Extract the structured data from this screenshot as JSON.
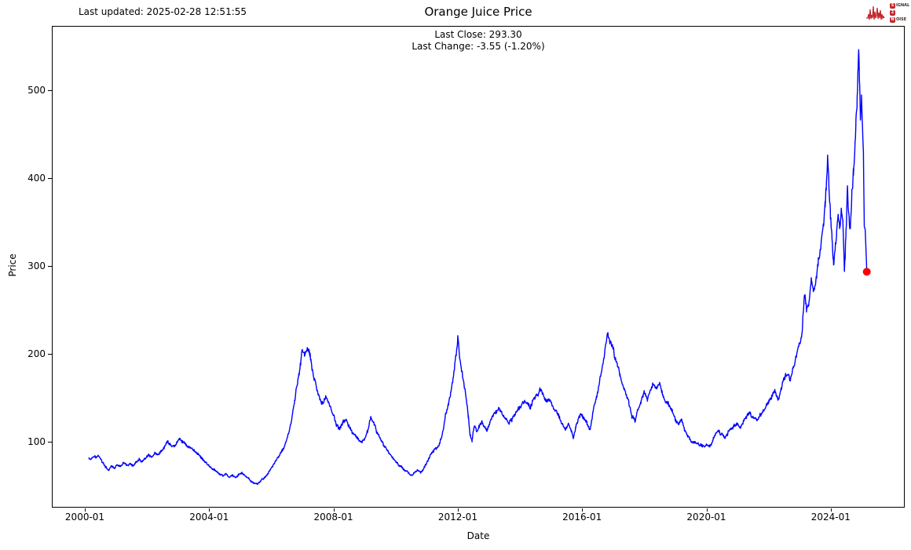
{
  "header": {
    "last_updated": "Last updated: 2025-02-28 12:51:55",
    "title": "Orange Juice Price",
    "subtitle_close": "Last Close: 293.30",
    "subtitle_change": "Last Change: -3.55 (-1.20%)",
    "logo": {
      "color": "#c1272d",
      "rows": [
        {
          "boxed": "S",
          "rest": "IGNAL"
        },
        {
          "boxed": "2",
          "rest": ""
        },
        {
          "boxed": "N",
          "rest": "OISE"
        }
      ]
    }
  },
  "chart_data": {
    "type": "line",
    "title": "Orange Juice Price",
    "xlabel": "Date",
    "ylabel": "Price",
    "line_color": "#0000ff",
    "marker_color": "#ff0000",
    "last_close": 293.3,
    "last_change": -3.55,
    "last_change_pct": -1.2,
    "last_updated": "2025-02-28 12:51:55",
    "xlim": [
      1998.94,
      2026.38
    ],
    "ylim": [
      25,
      573
    ],
    "x_ticks": [
      {
        "year": 2000,
        "label": "2000-01"
      },
      {
        "year": 2004,
        "label": "2004-01"
      },
      {
        "year": 2008,
        "label": "2008-01"
      },
      {
        "year": 2012,
        "label": "2012-01"
      },
      {
        "year": 2016,
        "label": "2016-01"
      },
      {
        "year": 2020,
        "label": "2020-01"
      },
      {
        "year": 2024,
        "label": "2024-01"
      }
    ],
    "y_ticks": [
      {
        "value": 100,
        "label": "100"
      },
      {
        "value": 200,
        "label": "200"
      },
      {
        "value": 300,
        "label": "300"
      },
      {
        "value": 400,
        "label": "400"
      },
      {
        "value": 500,
        "label": "500"
      }
    ],
    "noise_pct": 0.03,
    "noise_cutoff_year": 2025.0,
    "marker_point": [
      2025.16,
      293.3
    ],
    "series": [
      {
        "name": "Orange Juice Price",
        "points": [
          [
            2000.12,
            83
          ],
          [
            2000.2,
            80
          ],
          [
            2000.28,
            85
          ],
          [
            2000.36,
            82
          ],
          [
            2000.45,
            84
          ],
          [
            2000.55,
            78
          ],
          [
            2000.65,
            72
          ],
          [
            2000.75,
            67
          ],
          [
            2000.85,
            72
          ],
          [
            2000.95,
            70
          ],
          [
            2001.05,
            73
          ],
          [
            2001.15,
            71
          ],
          [
            2001.25,
            76
          ],
          [
            2001.35,
            73
          ],
          [
            2001.45,
            75
          ],
          [
            2001.55,
            72
          ],
          [
            2001.65,
            77
          ],
          [
            2001.75,
            79
          ],
          [
            2001.85,
            77
          ],
          [
            2001.95,
            81
          ],
          [
            2002.05,
            84
          ],
          [
            2002.15,
            82
          ],
          [
            2002.25,
            86
          ],
          [
            2002.35,
            84
          ],
          [
            2002.45,
            88
          ],
          [
            2002.55,
            93
          ],
          [
            2002.65,
            100
          ],
          [
            2002.75,
            97
          ],
          [
            2002.85,
            94
          ],
          [
            2002.95,
            98
          ],
          [
            2003.05,
            103
          ],
          [
            2003.15,
            100
          ],
          [
            2003.25,
            97
          ],
          [
            2003.35,
            94
          ],
          [
            2003.45,
            92
          ],
          [
            2003.55,
            89
          ],
          [
            2003.65,
            86
          ],
          [
            2003.75,
            82
          ],
          [
            2003.85,
            78
          ],
          [
            2003.95,
            74
          ],
          [
            2004.05,
            71
          ],
          [
            2004.15,
            68
          ],
          [
            2004.25,
            65
          ],
          [
            2004.35,
            63
          ],
          [
            2004.45,
            61
          ],
          [
            2004.55,
            63
          ],
          [
            2004.65,
            60
          ],
          [
            2004.75,
            62
          ],
          [
            2004.85,
            59
          ],
          [
            2004.95,
            62
          ],
          [
            2005.05,
            65
          ],
          [
            2005.15,
            61
          ],
          [
            2005.25,
            58
          ],
          [
            2005.35,
            55
          ],
          [
            2005.45,
            53
          ],
          [
            2005.55,
            52
          ],
          [
            2005.65,
            55
          ],
          [
            2005.75,
            58
          ],
          [
            2005.85,
            62
          ],
          [
            2005.95,
            67
          ],
          [
            2006.05,
            73
          ],
          [
            2006.15,
            78
          ],
          [
            2006.25,
            84
          ],
          [
            2006.35,
            90
          ],
          [
            2006.45,
            97
          ],
          [
            2006.55,
            108
          ],
          [
            2006.65,
            124
          ],
          [
            2006.75,
            145
          ],
          [
            2006.85,
            168
          ],
          [
            2006.95,
            192
          ],
          [
            2007.0,
            205
          ],
          [
            2007.08,
            196
          ],
          [
            2007.16,
            207
          ],
          [
            2007.25,
            198
          ],
          [
            2007.33,
            178
          ],
          [
            2007.42,
            165
          ],
          [
            2007.5,
            154
          ],
          [
            2007.58,
            147
          ],
          [
            2007.67,
            143
          ],
          [
            2007.75,
            152
          ],
          [
            2007.83,
            146
          ],
          [
            2007.92,
            138
          ],
          [
            2008.0,
            130
          ],
          [
            2008.1,
            119
          ],
          [
            2008.2,
            114
          ],
          [
            2008.3,
            121
          ],
          [
            2008.4,
            126
          ],
          [
            2008.5,
            118
          ],
          [
            2008.6,
            110
          ],
          [
            2008.7,
            106
          ],
          [
            2008.8,
            102
          ],
          [
            2008.9,
            98
          ],
          [
            2009.0,
            102
          ],
          [
            2009.1,
            112
          ],
          [
            2009.2,
            129
          ],
          [
            2009.3,
            121
          ],
          [
            2009.4,
            110
          ],
          [
            2009.5,
            103
          ],
          [
            2009.6,
            97
          ],
          [
            2009.7,
            92
          ],
          [
            2009.8,
            87
          ],
          [
            2009.9,
            82
          ],
          [
            2010.0,
            78
          ],
          [
            2010.1,
            74
          ],
          [
            2010.2,
            71
          ],
          [
            2010.3,
            68
          ],
          [
            2010.4,
            65
          ],
          [
            2010.5,
            62
          ],
          [
            2010.6,
            64
          ],
          [
            2010.7,
            67
          ],
          [
            2010.8,
            65
          ],
          [
            2010.9,
            70
          ],
          [
            2011.0,
            76
          ],
          [
            2011.1,
            83
          ],
          [
            2011.2,
            88
          ],
          [
            2011.3,
            93
          ],
          [
            2011.4,
            97
          ],
          [
            2011.5,
            108
          ],
          [
            2011.6,
            128
          ],
          [
            2011.7,
            142
          ],
          [
            2011.8,
            160
          ],
          [
            2011.88,
            178
          ],
          [
            2011.95,
            200
          ],
          [
            2012.0,
            219
          ],
          [
            2012.06,
            196
          ],
          [
            2012.12,
            183
          ],
          [
            2012.2,
            165
          ],
          [
            2012.28,
            149
          ],
          [
            2012.34,
            128
          ],
          [
            2012.4,
            108
          ],
          [
            2012.46,
            102
          ],
          [
            2012.54,
            119
          ],
          [
            2012.62,
            111
          ],
          [
            2012.7,
            117
          ],
          [
            2012.78,
            123
          ],
          [
            2012.86,
            118
          ],
          [
            2012.94,
            112
          ],
          [
            2013.04,
            122
          ],
          [
            2013.14,
            131
          ],
          [
            2013.24,
            135
          ],
          [
            2013.34,
            137
          ],
          [
            2013.44,
            131
          ],
          [
            2013.54,
            126
          ],
          [
            2013.64,
            121
          ],
          [
            2013.74,
            126
          ],
          [
            2013.84,
            131
          ],
          [
            2013.94,
            137
          ],
          [
            2014.04,
            142
          ],
          [
            2014.14,
            147
          ],
          [
            2014.24,
            143
          ],
          [
            2014.34,
            140
          ],
          [
            2014.44,
            148
          ],
          [
            2014.54,
            152
          ],
          [
            2014.64,
            159
          ],
          [
            2014.72,
            155
          ],
          [
            2014.8,
            150
          ],
          [
            2014.88,
            146
          ],
          [
            2014.96,
            148
          ],
          [
            2015.06,
            141
          ],
          [
            2015.16,
            136
          ],
          [
            2015.26,
            128
          ],
          [
            2015.36,
            120
          ],
          [
            2015.46,
            114
          ],
          [
            2015.56,
            119
          ],
          [
            2015.66,
            111
          ],
          [
            2015.72,
            103
          ],
          [
            2015.8,
            117
          ],
          [
            2015.88,
            126
          ],
          [
            2015.96,
            131
          ],
          [
            2016.06,
            126
          ],
          [
            2016.16,
            120
          ],
          [
            2016.26,
            114
          ],
          [
            2016.36,
            135
          ],
          [
            2016.46,
            149
          ],
          [
            2016.56,
            167
          ],
          [
            2016.66,
            188
          ],
          [
            2016.76,
            210
          ],
          [
            2016.82,
            223
          ],
          [
            2016.9,
            214
          ],
          [
            2016.98,
            208
          ],
          [
            2017.06,
            194
          ],
          [
            2017.14,
            189
          ],
          [
            2017.22,
            175
          ],
          [
            2017.3,
            166
          ],
          [
            2017.4,
            156
          ],
          [
            2017.5,
            146
          ],
          [
            2017.6,
            129
          ],
          [
            2017.7,
            123
          ],
          [
            2017.8,
            136
          ],
          [
            2017.9,
            147
          ],
          [
            2018.0,
            157
          ],
          [
            2018.1,
            149
          ],
          [
            2018.2,
            159
          ],
          [
            2018.3,
            166
          ],
          [
            2018.4,
            161
          ],
          [
            2018.5,
            166
          ],
          [
            2018.6,
            154
          ],
          [
            2018.7,
            147
          ],
          [
            2018.8,
            141
          ],
          [
            2018.9,
            135
          ],
          [
            2019.0,
            124
          ],
          [
            2019.1,
            120
          ],
          [
            2019.2,
            126
          ],
          [
            2019.3,
            114
          ],
          [
            2019.4,
            106
          ],
          [
            2019.5,
            101
          ],
          [
            2019.6,
            99
          ],
          [
            2019.7,
            98
          ],
          [
            2019.8,
            96
          ],
          [
            2019.9,
            95
          ],
          [
            2020.0,
            97
          ],
          [
            2020.1,
            95
          ],
          [
            2020.2,
            101
          ],
          [
            2020.3,
            110
          ],
          [
            2020.4,
            113
          ],
          [
            2020.5,
            108
          ],
          [
            2020.6,
            105
          ],
          [
            2020.7,
            110
          ],
          [
            2020.8,
            114
          ],
          [
            2020.9,
            118
          ],
          [
            2021.0,
            121
          ],
          [
            2021.1,
            116
          ],
          [
            2021.2,
            123
          ],
          [
            2021.3,
            129
          ],
          [
            2021.4,
            133
          ],
          [
            2021.5,
            127
          ],
          [
            2021.6,
            124
          ],
          [
            2021.7,
            129
          ],
          [
            2021.8,
            134
          ],
          [
            2021.9,
            138
          ],
          [
            2022.0,
            145
          ],
          [
            2022.1,
            152
          ],
          [
            2022.2,
            157
          ],
          [
            2022.3,
            147
          ],
          [
            2022.4,
            160
          ],
          [
            2022.5,
            170
          ],
          [
            2022.6,
            179
          ],
          [
            2022.7,
            172
          ],
          [
            2022.8,
            186
          ],
          [
            2022.9,
            198
          ],
          [
            2023.0,
            212
          ],
          [
            2023.08,
            225
          ],
          [
            2023.16,
            272
          ],
          [
            2023.22,
            250
          ],
          [
            2023.3,
            261
          ],
          [
            2023.38,
            285
          ],
          [
            2023.44,
            270
          ],
          [
            2023.52,
            281
          ],
          [
            2023.6,
            304
          ],
          [
            2023.68,
            322
          ],
          [
            2023.76,
            348
          ],
          [
            2023.82,
            372
          ],
          [
            2023.86,
            398
          ],
          [
            2023.9,
            424
          ],
          [
            2023.94,
            392
          ],
          [
            2023.99,
            356
          ],
          [
            2024.04,
            330
          ],
          [
            2024.09,
            298
          ],
          [
            2024.14,
            315
          ],
          [
            2024.19,
            334
          ],
          [
            2024.24,
            352
          ],
          [
            2024.29,
            341
          ],
          [
            2024.34,
            363
          ],
          [
            2024.39,
            349
          ],
          [
            2024.44,
            296
          ],
          [
            2024.49,
            338
          ],
          [
            2024.54,
            388
          ],
          [
            2024.58,
            357
          ],
          [
            2024.63,
            344
          ],
          [
            2024.68,
            379
          ],
          [
            2024.73,
            405
          ],
          [
            2024.77,
            432
          ],
          [
            2024.81,
            464
          ],
          [
            2024.85,
            490
          ],
          [
            2024.88,
            523
          ],
          [
            2024.9,
            549
          ],
          [
            2024.93,
            501
          ],
          [
            2024.96,
            465
          ],
          [
            2024.99,
            489
          ],
          [
            2025.02,
            460
          ],
          [
            2025.05,
            430
          ],
          [
            2025.08,
            345
          ],
          [
            2025.11,
            341
          ],
          [
            2025.16,
            293.3
          ]
        ]
      }
    ]
  }
}
